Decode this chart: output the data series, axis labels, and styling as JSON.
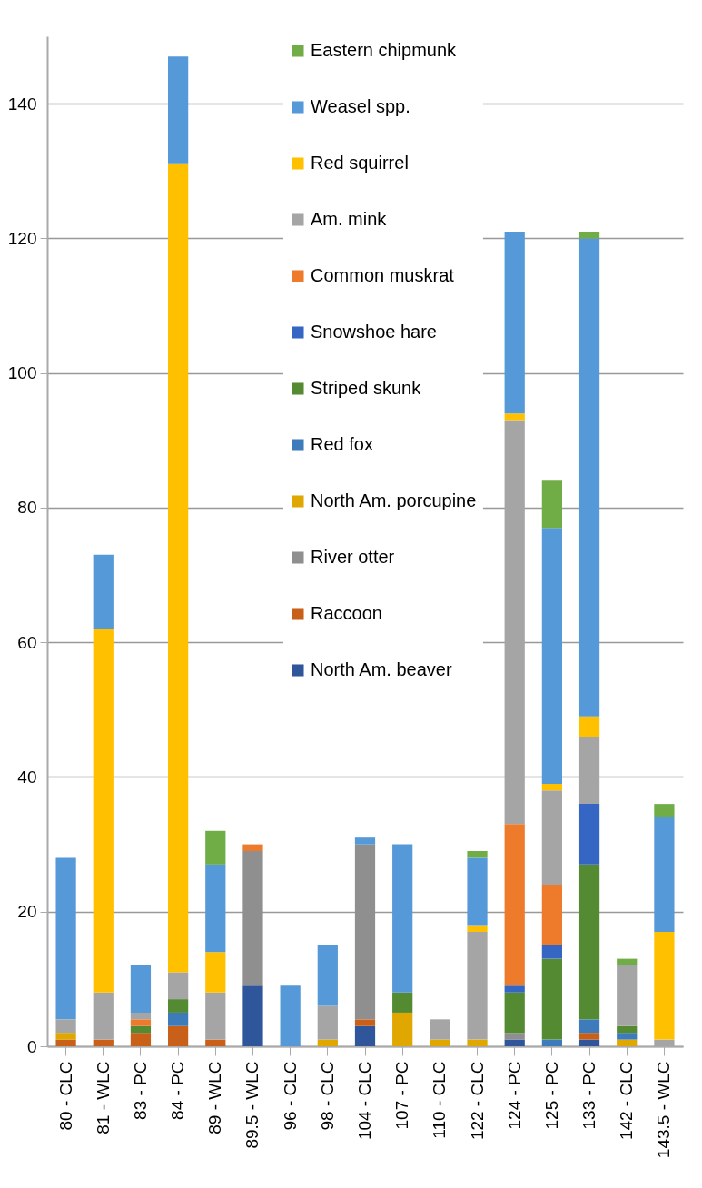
{
  "chart_data": {
    "type": "bar",
    "stacked": true,
    "categories": [
      "80 - CLC",
      "81 - WLC",
      "83 - PC",
      "84 - PC",
      "89 - WLC",
      "89.5 - WLC",
      "96 - CLC",
      "98 - CLC",
      "104 - CLC",
      "107 - PC",
      "110 - CLC",
      "122 - CLC",
      "124 - PC",
      "125 - PC",
      "133 - PC",
      "142 - CLC",
      "143.5 - WLC"
    ],
    "series": [
      {
        "name": "North Am. beaver",
        "color": "#2f559a",
        "values": [
          0,
          0,
          0,
          0,
          0,
          9,
          0,
          0,
          3,
          0,
          0,
          0,
          1,
          0,
          1,
          0,
          0
        ]
      },
      {
        "name": "Raccoon",
        "color": "#c9601a",
        "values": [
          1,
          1,
          2,
          3,
          1,
          0,
          0,
          0,
          1,
          0,
          0,
          0,
          0,
          0,
          1,
          0,
          0
        ]
      },
      {
        "name": "River otter",
        "color": "#8f8f8f",
        "values": [
          0,
          0,
          0,
          0,
          0,
          20,
          0,
          0,
          26,
          0,
          0,
          0,
          1,
          0,
          0,
          0,
          0
        ]
      },
      {
        "name": "North Am. porcupine",
        "color": "#dfa700",
        "values": [
          1,
          0,
          0,
          0,
          0,
          0,
          0,
          1,
          0,
          5,
          1,
          1,
          0,
          0,
          0,
          1,
          0
        ]
      },
      {
        "name": "Red fox",
        "color": "#3e7bbb",
        "values": [
          0,
          0,
          0,
          2,
          0,
          0,
          0,
          0,
          0,
          0,
          0,
          0,
          0,
          1,
          2,
          1,
          0
        ]
      },
      {
        "name": "Striped skunk",
        "color": "#538a32",
        "values": [
          0,
          0,
          1,
          2,
          0,
          0,
          0,
          0,
          0,
          3,
          0,
          0,
          6,
          12,
          23,
          1,
          0
        ]
      },
      {
        "name": "Snowshoe hare",
        "color": "#3566c4",
        "values": [
          0,
          0,
          0,
          0,
          0,
          0,
          0,
          0,
          0,
          0,
          0,
          0,
          1,
          2,
          9,
          0,
          0
        ]
      },
      {
        "name": "Common muskrat",
        "color": "#ee7b2c",
        "values": [
          0,
          0,
          1,
          0,
          0,
          1,
          0,
          0,
          0,
          0,
          0,
          0,
          24,
          9,
          0,
          0,
          0
        ]
      },
      {
        "name": "Am. mink",
        "color": "#a5a5a5",
        "values": [
          2,
          7,
          1,
          4,
          7,
          0,
          0,
          5,
          0,
          0,
          3,
          16,
          60,
          14,
          10,
          9,
          1
        ]
      },
      {
        "name": "Red squirrel",
        "color": "#ffc000",
        "values": [
          0,
          54,
          0,
          120,
          6,
          0,
          0,
          0,
          0,
          0,
          0,
          1,
          1,
          1,
          3,
          0,
          16
        ]
      },
      {
        "name": "Weasel spp.",
        "color": "#5599d8",
        "values": [
          24,
          11,
          7,
          16,
          13,
          0,
          9,
          9,
          1,
          22,
          0,
          10,
          27,
          38,
          71,
          0,
          17
        ]
      },
      {
        "name": "Eastern chipmunk",
        "color": "#70ad47",
        "values": [
          0,
          0,
          0,
          0,
          5,
          0,
          0,
          0,
          0,
          0,
          0,
          1,
          0,
          7,
          1,
          1,
          2
        ]
      }
    ],
    "ylim": [
      0,
      150
    ],
    "yticks": [
      0,
      20,
      40,
      60,
      80,
      100,
      120,
      140
    ],
    "grid": "y",
    "legend": "top"
  }
}
